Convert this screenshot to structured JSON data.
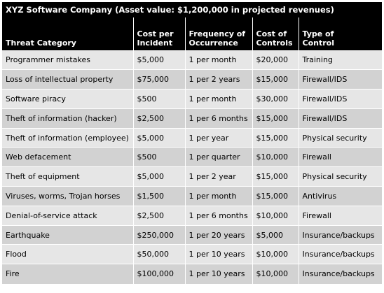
{
  "title": "XYZ Software Company (Asset value: $1,200,000 in projected revenues)",
  "headers": [
    [
      "Threat Category"
    ],
    [
      "Cost per",
      "Incident"
    ],
    [
      "Frequency of",
      "Occurrence"
    ],
    [
      "Cost of",
      "Controls"
    ],
    [
      "Type of",
      "Control"
    ]
  ],
  "rows": [
    [
      "Programmer mistakes",
      "$5,000",
      "1 per month",
      "$20,000",
      "Training"
    ],
    [
      "Loss of intellectual property",
      "$75,000",
      "1 per 2 years",
      "$15,000",
      "Firewall/IDS"
    ],
    [
      "Software piracy",
      "$500",
      "1 per month",
      "$30,000",
      "Firewall/IDS"
    ],
    [
      "Theft of information (hacker)",
      "$2,500",
      "1 per 6 months",
      "$15,000",
      "Firewall/IDS"
    ],
    [
      "Theft of information (employee)",
      "$5,000",
      "1 per year",
      "$15,000",
      "Physical security"
    ],
    [
      "Web defacement",
      "$500",
      "1 per quarter",
      "$10,000",
      "Firewall"
    ],
    [
      "Theft of equipment",
      "$5,000",
      "1 per 2 year",
      "$15,000",
      "Physical security"
    ],
    [
      "Viruses, worms, Trojan horses",
      "$1,500",
      "1 per month",
      "$15,000",
      "Antivirus"
    ],
    [
      "Denial-of-service attack",
      "$2,500",
      "1 per 6 months",
      "$10,000",
      "Firewall"
    ],
    [
      "Earthquake",
      "$250,000",
      "1 per 20 years",
      "$5,000",
      "Insurance/backups"
    ],
    [
      "Flood",
      "$50,000",
      "1 per 10 years",
      "$10,000",
      "Insurance/backups"
    ],
    [
      "Fire",
      "$100,000",
      "1 per 10 years",
      "$10,000",
      "Insurance/backups"
    ]
  ]
}
